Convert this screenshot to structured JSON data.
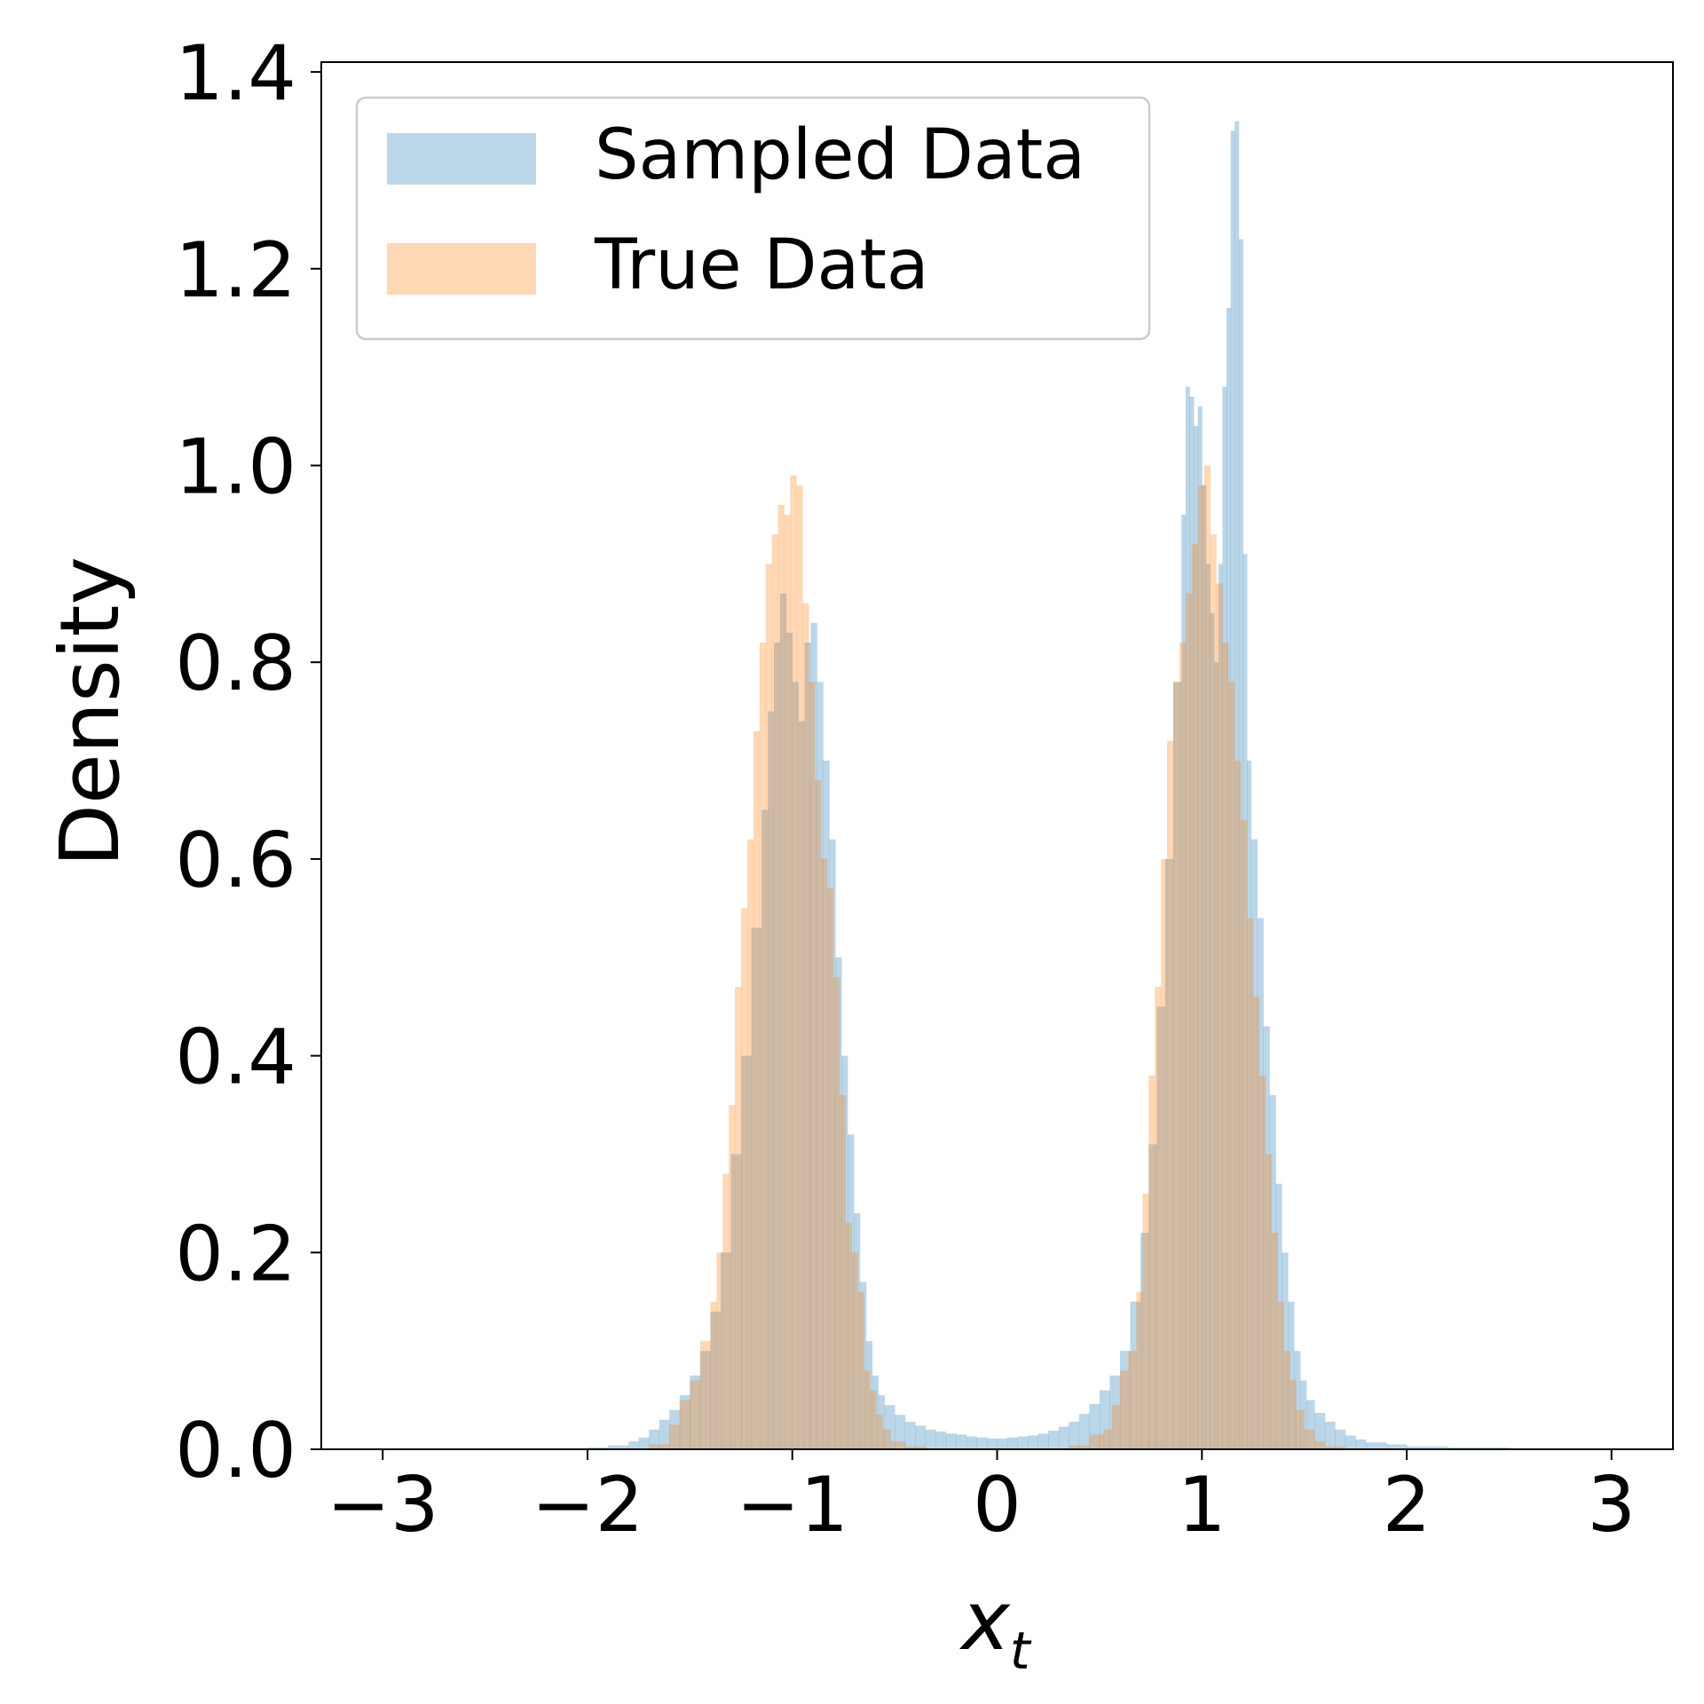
{
  "chart_data": {
    "type": "histogram",
    "xlabel": "x",
    "xlabel_subscript": "t",
    "ylabel": "Density",
    "xlim": [
      -3.3,
      3.3
    ],
    "ylim": [
      0,
      1.41
    ],
    "xticks": [
      -3,
      -2,
      -1,
      0,
      1,
      2,
      3
    ],
    "xtick_labels": [
      "−3",
      "−2",
      "−1",
      "0",
      "1",
      "2",
      "3"
    ],
    "yticks": [
      0.0,
      0.2,
      0.4,
      0.6,
      0.8,
      1.0,
      1.2,
      1.4
    ],
    "ytick_labels": [
      "0.0",
      "0.2",
      "0.4",
      "0.6",
      "0.8",
      "1.0",
      "1.2",
      "1.4"
    ],
    "legend_position": "upper-left",
    "grid": false,
    "series": [
      {
        "name": "Sampled Data",
        "color": "#1f77b4",
        "opacity": 0.3,
        "bins": [
          [
            -2.5,
            -2.0,
            0.001
          ],
          [
            -2.0,
            -1.9,
            0.002
          ],
          [
            -1.9,
            -1.8,
            0.004
          ],
          [
            -1.8,
            -1.75,
            0.008
          ],
          [
            -1.75,
            -1.7,
            0.012
          ],
          [
            -1.7,
            -1.65,
            0.02
          ],
          [
            -1.65,
            -1.6,
            0.03
          ],
          [
            -1.6,
            -1.55,
            0.04
          ],
          [
            -1.55,
            -1.5,
            0.055
          ],
          [
            -1.5,
            -1.45,
            0.075
          ],
          [
            -1.45,
            -1.4,
            0.1
          ],
          [
            -1.4,
            -1.35,
            0.14
          ],
          [
            -1.35,
            -1.3,
            0.2
          ],
          [
            -1.3,
            -1.25,
            0.3
          ],
          [
            -1.25,
            -1.2,
            0.4
          ],
          [
            -1.2,
            -1.15,
            0.53
          ],
          [
            -1.15,
            -1.12,
            0.65
          ],
          [
            -1.12,
            -1.09,
            0.75
          ],
          [
            -1.09,
            -1.06,
            0.82
          ],
          [
            -1.06,
            -1.03,
            0.87
          ],
          [
            -1.03,
            -1.0,
            0.83
          ],
          [
            -1.0,
            -0.97,
            0.78
          ],
          [
            -0.97,
            -0.94,
            0.74
          ],
          [
            -0.94,
            -0.91,
            0.82
          ],
          [
            -0.91,
            -0.88,
            0.84
          ],
          [
            -0.88,
            -0.85,
            0.78
          ],
          [
            -0.85,
            -0.82,
            0.7
          ],
          [
            -0.82,
            -0.79,
            0.62
          ],
          [
            -0.79,
            -0.76,
            0.5
          ],
          [
            -0.76,
            -0.73,
            0.4
          ],
          [
            -0.73,
            -0.7,
            0.32
          ],
          [
            -0.7,
            -0.67,
            0.24
          ],
          [
            -0.67,
            -0.64,
            0.17
          ],
          [
            -0.64,
            -0.61,
            0.11
          ],
          [
            -0.61,
            -0.58,
            0.075
          ],
          [
            -0.58,
            -0.55,
            0.055
          ],
          [
            -0.55,
            -0.5,
            0.045
          ],
          [
            -0.5,
            -0.45,
            0.035
          ],
          [
            -0.45,
            -0.4,
            0.028
          ],
          [
            -0.4,
            -0.35,
            0.024
          ],
          [
            -0.35,
            -0.3,
            0.02
          ],
          [
            -0.3,
            -0.25,
            0.018
          ],
          [
            -0.25,
            -0.2,
            0.016
          ],
          [
            -0.2,
            -0.15,
            0.015
          ],
          [
            -0.15,
            -0.1,
            0.013
          ],
          [
            -0.1,
            -0.05,
            0.012
          ],
          [
            -0.05,
            0.0,
            0.011
          ],
          [
            0.0,
            0.05,
            0.011
          ],
          [
            0.05,
            0.1,
            0.012
          ],
          [
            0.1,
            0.15,
            0.013
          ],
          [
            0.15,
            0.2,
            0.014
          ],
          [
            0.2,
            0.25,
            0.016
          ],
          [
            0.25,
            0.3,
            0.019
          ],
          [
            0.3,
            0.35,
            0.023
          ],
          [
            0.35,
            0.4,
            0.028
          ],
          [
            0.4,
            0.45,
            0.036
          ],
          [
            0.45,
            0.5,
            0.046
          ],
          [
            0.5,
            0.55,
            0.06
          ],
          [
            0.55,
            0.6,
            0.075
          ],
          [
            0.6,
            0.65,
            0.1
          ],
          [
            0.65,
            0.7,
            0.15
          ],
          [
            0.7,
            0.74,
            0.22
          ],
          [
            0.74,
            0.78,
            0.31
          ],
          [
            0.78,
            0.82,
            0.45
          ],
          [
            0.82,
            0.86,
            0.6
          ],
          [
            0.86,
            0.9,
            0.78
          ],
          [
            0.9,
            0.92,
            0.95
          ],
          [
            0.92,
            0.94,
            1.08
          ],
          [
            0.94,
            0.96,
            1.07
          ],
          [
            0.96,
            0.98,
            1.04
          ],
          [
            0.98,
            1.0,
            1.06
          ],
          [
            1.0,
            1.02,
            0.98
          ],
          [
            1.02,
            1.04,
            0.9
          ],
          [
            1.04,
            1.06,
            0.85
          ],
          [
            1.06,
            1.08,
            0.8
          ],
          [
            1.08,
            1.1,
            0.9
          ],
          [
            1.1,
            1.12,
            1.08
          ],
          [
            1.12,
            1.14,
            1.16
          ],
          [
            1.14,
            1.16,
            1.34
          ],
          [
            1.16,
            1.18,
            1.35
          ],
          [
            1.18,
            1.2,
            1.23
          ],
          [
            1.2,
            1.22,
            0.91
          ],
          [
            1.22,
            1.24,
            0.7
          ],
          [
            1.24,
            1.27,
            0.62
          ],
          [
            1.27,
            1.3,
            0.54
          ],
          [
            1.3,
            1.33,
            0.43
          ],
          [
            1.33,
            1.36,
            0.36
          ],
          [
            1.36,
            1.39,
            0.27
          ],
          [
            1.39,
            1.42,
            0.2
          ],
          [
            1.42,
            1.45,
            0.15
          ],
          [
            1.45,
            1.48,
            0.1
          ],
          [
            1.48,
            1.51,
            0.07
          ],
          [
            1.51,
            1.55,
            0.05
          ],
          [
            1.55,
            1.6,
            0.037
          ],
          [
            1.6,
            1.65,
            0.028
          ],
          [
            1.65,
            1.7,
            0.02
          ],
          [
            1.7,
            1.75,
            0.014
          ],
          [
            1.75,
            1.8,
            0.01
          ],
          [
            1.8,
            1.9,
            0.007
          ],
          [
            1.9,
            2.0,
            0.005
          ],
          [
            2.0,
            2.2,
            0.003
          ],
          [
            2.2,
            2.5,
            0.002
          ],
          [
            2.5,
            3.0,
            0.001
          ]
        ]
      },
      {
        "name": "True Data",
        "color": "#ff7f0e",
        "opacity": 0.3,
        "bins": [
          [
            -1.7,
            -1.6,
            0.005
          ],
          [
            -1.6,
            -1.55,
            0.025
          ],
          [
            -1.55,
            -1.5,
            0.05
          ],
          [
            -1.5,
            -1.45,
            0.07
          ],
          [
            -1.45,
            -1.4,
            0.11
          ],
          [
            -1.4,
            -1.37,
            0.15
          ],
          [
            -1.37,
            -1.34,
            0.2
          ],
          [
            -1.34,
            -1.31,
            0.28
          ],
          [
            -1.31,
            -1.28,
            0.35
          ],
          [
            -1.28,
            -1.25,
            0.47
          ],
          [
            -1.25,
            -1.22,
            0.55
          ],
          [
            -1.22,
            -1.19,
            0.62
          ],
          [
            -1.19,
            -1.16,
            0.73
          ],
          [
            -1.16,
            -1.13,
            0.82
          ],
          [
            -1.13,
            -1.1,
            0.9
          ],
          [
            -1.1,
            -1.07,
            0.93
          ],
          [
            -1.07,
            -1.04,
            0.96
          ],
          [
            -1.04,
            -1.01,
            0.95
          ],
          [
            -1.01,
            -0.98,
            0.99
          ],
          [
            -0.98,
            -0.95,
            0.98
          ],
          [
            -0.95,
            -0.92,
            0.86
          ],
          [
            -0.92,
            -0.89,
            0.78
          ],
          [
            -0.89,
            -0.86,
            0.68
          ],
          [
            -0.86,
            -0.83,
            0.6
          ],
          [
            -0.83,
            -0.8,
            0.57
          ],
          [
            -0.8,
            -0.77,
            0.48
          ],
          [
            -0.77,
            -0.74,
            0.36
          ],
          [
            -0.74,
            -0.71,
            0.23
          ],
          [
            -0.71,
            -0.68,
            0.2
          ],
          [
            -0.68,
            -0.65,
            0.16
          ],
          [
            -0.65,
            -0.62,
            0.08
          ],
          [
            -0.62,
            -0.59,
            0.06
          ],
          [
            -0.59,
            -0.56,
            0.035
          ],
          [
            -0.56,
            -0.52,
            0.02
          ],
          [
            -0.52,
            -0.45,
            0.008
          ],
          [
            -0.45,
            -0.35,
            0.003
          ],
          [
            0.35,
            0.45,
            0.004
          ],
          [
            0.45,
            0.52,
            0.015
          ],
          [
            0.52,
            0.56,
            0.02
          ],
          [
            0.56,
            0.6,
            0.045
          ],
          [
            0.6,
            0.64,
            0.08
          ],
          [
            0.64,
            0.68,
            0.1
          ],
          [
            0.68,
            0.71,
            0.16
          ],
          [
            0.71,
            0.74,
            0.26
          ],
          [
            0.74,
            0.77,
            0.38
          ],
          [
            0.77,
            0.8,
            0.47
          ],
          [
            0.8,
            0.83,
            0.6
          ],
          [
            0.83,
            0.86,
            0.72
          ],
          [
            0.86,
            0.89,
            0.78
          ],
          [
            0.89,
            0.92,
            0.82
          ],
          [
            0.92,
            0.95,
            0.87
          ],
          [
            0.95,
            0.98,
            0.92
          ],
          [
            0.98,
            1.01,
            0.98
          ],
          [
            1.01,
            1.04,
            1.0
          ],
          [
            1.04,
            1.07,
            0.93
          ],
          [
            1.07,
            1.1,
            0.88
          ],
          [
            1.1,
            1.13,
            0.82
          ],
          [
            1.13,
            1.16,
            0.78
          ],
          [
            1.16,
            1.19,
            0.7
          ],
          [
            1.19,
            1.22,
            0.64
          ],
          [
            1.22,
            1.25,
            0.54
          ],
          [
            1.25,
            1.28,
            0.46
          ],
          [
            1.28,
            1.31,
            0.38
          ],
          [
            1.31,
            1.34,
            0.3
          ],
          [
            1.34,
            1.37,
            0.22
          ],
          [
            1.37,
            1.4,
            0.15
          ],
          [
            1.4,
            1.43,
            0.1
          ],
          [
            1.43,
            1.46,
            0.07
          ],
          [
            1.46,
            1.5,
            0.04
          ],
          [
            1.5,
            1.55,
            0.02
          ],
          [
            1.55,
            1.6,
            0.008
          ],
          [
            1.6,
            1.7,
            0.003
          ]
        ]
      }
    ]
  }
}
